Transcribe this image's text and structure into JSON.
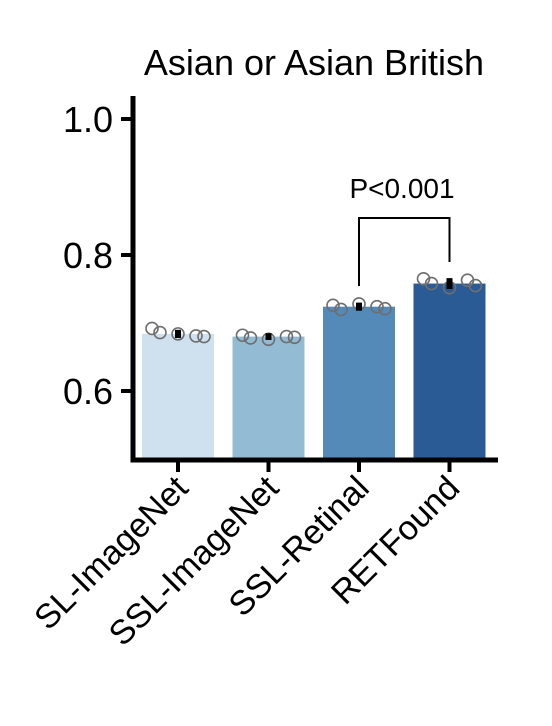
{
  "chart_data": {
    "type": "bar",
    "title": "Asian or Asian British",
    "xlabel": "",
    "ylabel": "",
    "ylim": [
      0.5,
      1.02
    ],
    "yticks": [
      0.6,
      0.8,
      1.0
    ],
    "ytick_labels": [
      "0.6",
      "0.8",
      "1.0"
    ],
    "categories": [
      "SL-ImageNet",
      "SSL-ImageNet",
      "SSL-Retinal",
      "RETFound"
    ],
    "values": [
      0.684,
      0.68,
      0.724,
      0.758
    ],
    "errors": [
      0.006,
      0.005,
      0.006,
      0.008
    ],
    "colors": [
      "#cfe0ee",
      "#94bbd4",
      "#548ab8",
      "#2b5b94"
    ],
    "points": [
      [
        0.692,
        0.686,
        0.684,
        0.681,
        0.68
      ],
      [
        0.682,
        0.678,
        0.676,
        0.68,
        0.679
      ],
      [
        0.726,
        0.72,
        0.728,
        0.724,
        0.721
      ],
      [
        0.765,
        0.758,
        0.752,
        0.763,
        0.755
      ]
    ],
    "annotation": {
      "text": "P<0.001",
      "from_category": "SSL-Retinal",
      "to_category": "RETFound"
    },
    "grid": false,
    "legend": "none"
  }
}
